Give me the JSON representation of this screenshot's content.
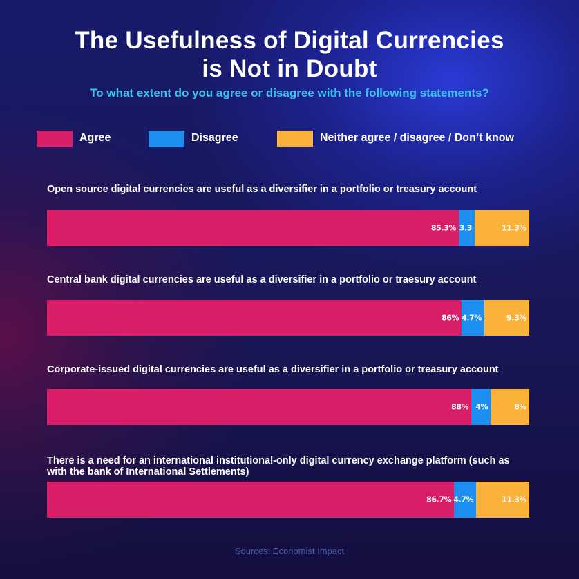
{
  "colors": {
    "agree": "#d81e68",
    "disagree": "#1c8ff0",
    "neither": "#fbb23a"
  },
  "chart_data": {
    "type": "bar",
    "orientation": "horizontal",
    "stacked": true,
    "title": "The Usefulness of Digital Currencies is Not in Doubt",
    "title_lines": [
      "The Usefulness of Digital Currencies",
      "is Not in Doubt"
    ],
    "subtitle": "To what extent do you agree or disagree with the following statements?",
    "legend": [
      "Agree",
      "Disagree",
      "Neither agree / disagree / Don’t know"
    ],
    "categories": [
      "Open source digital currencies are useful as a diversifier in a portfolio or treasury account",
      "Central bank digital currencies are useful as a diversifier in a portfolio or traesury account",
      "Corporate-issued digital currencies are useful as a diversifier in a portfolio or treasury account",
      "There is a need for an international institutional-only digital currency exchange platform (such as with the bank of International Settlements)"
    ],
    "series": [
      {
        "name": "Agree",
        "values": [
          85.3,
          86,
          88,
          86.7
        ],
        "labels": [
          "85.3%",
          "86%",
          "88%",
          "86.7%"
        ]
      },
      {
        "name": "Disagree",
        "values": [
          3.3,
          4.7,
          4,
          4.7
        ],
        "labels": [
          "3.3",
          "4.7%",
          "4%",
          "4.7%"
        ]
      },
      {
        "name": "Neither agree / disagree / Don’t know",
        "values": [
          11.3,
          9.3,
          8,
          11.3
        ],
        "labels": [
          "11.3%",
          "9.3%",
          "8%",
          "11.3%"
        ]
      }
    ],
    "source": "Sources: Economist Impact"
  }
}
